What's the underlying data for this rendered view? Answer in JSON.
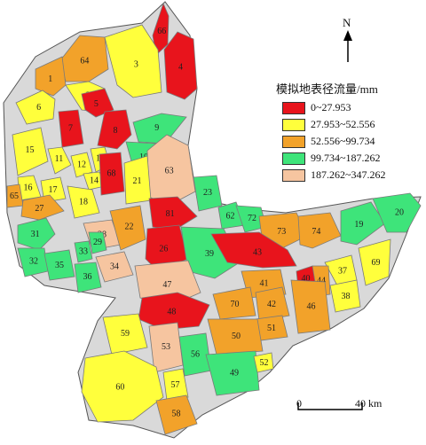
{
  "legend": {
    "title": "模拟地表径流量/mm",
    "classes": [
      {
        "label": "0~27.953",
        "color": "#e8141c"
      },
      {
        "label": "27.953~52.556",
        "color": "#ffff3c"
      },
      {
        "label": "52.556~99.734",
        "color": "#f2a22a"
      },
      {
        "label": "99.734~187.262",
        "color": "#3ee47a"
      },
      {
        "label": "187.262~347.262",
        "color": "#f6c5a0"
      }
    ]
  },
  "north_arrow": {
    "label": "N"
  },
  "scale_bar": {
    "start_label": "0",
    "end_label": "40 km"
  },
  "regions": [
    {
      "id": "66",
      "class": 0
    },
    {
      "id": "4",
      "class": 0
    },
    {
      "id": "64",
      "class": 2
    },
    {
      "id": "3",
      "class": 1
    },
    {
      "id": "1",
      "class": 2
    },
    {
      "id": "2",
      "class": 1
    },
    {
      "id": "6",
      "class": 1
    },
    {
      "id": "5",
      "class": 0
    },
    {
      "id": "7",
      "class": 0
    },
    {
      "id": "8",
      "class": 0
    },
    {
      "id": "9",
      "class": 3
    },
    {
      "id": "10",
      "class": 3
    },
    {
      "id": "15",
      "class": 1
    },
    {
      "id": "11",
      "class": 1
    },
    {
      "id": "12",
      "class": 1
    },
    {
      "id": "13",
      "class": 1
    },
    {
      "id": "14",
      "class": 1
    },
    {
      "id": "68",
      "class": 0
    },
    {
      "id": "63",
      "class": 4
    },
    {
      "id": "21",
      "class": 1
    },
    {
      "id": "16",
      "class": 1
    },
    {
      "id": "17",
      "class": 1
    },
    {
      "id": "18",
      "class": 1
    },
    {
      "id": "65",
      "class": 2
    },
    {
      "id": "27",
      "class": 2
    },
    {
      "id": "23",
      "class": 3
    },
    {
      "id": "81",
      "class": 0
    },
    {
      "id": "62",
      "class": 3
    },
    {
      "id": "72",
      "class": 3
    },
    {
      "id": "73",
      "class": 2
    },
    {
      "id": "74",
      "class": 2
    },
    {
      "id": "19",
      "class": 3
    },
    {
      "id": "20",
      "class": 3
    },
    {
      "id": "31",
      "class": 3
    },
    {
      "id": "28",
      "class": 4
    },
    {
      "id": "22",
      "class": 2
    },
    {
      "id": "26",
      "class": 0
    },
    {
      "id": "39",
      "class": 3
    },
    {
      "id": "43",
      "class": 0
    },
    {
      "id": "69",
      "class": 1
    },
    {
      "id": "37",
      "class": 1
    },
    {
      "id": "32",
      "class": 3
    },
    {
      "id": "35",
      "class": 3
    },
    {
      "id": "33",
      "class": 3
    },
    {
      "id": "29",
      "class": 3
    },
    {
      "id": "34",
      "class": 4
    },
    {
      "id": "36",
      "class": 3
    },
    {
      "id": "47",
      "class": 4
    },
    {
      "id": "41",
      "class": 2
    },
    {
      "id": "44",
      "class": 2
    },
    {
      "id": "38",
      "class": 1
    },
    {
      "id": "40",
      "class": 0
    },
    {
      "id": "70",
      "class": 2
    },
    {
      "id": "42",
      "class": 2
    },
    {
      "id": "46",
      "class": 2
    },
    {
      "id": "48",
      "class": 0
    },
    {
      "id": "51",
      "class": 2
    },
    {
      "id": "50",
      "class": 2
    },
    {
      "id": "59",
      "class": 1
    },
    {
      "id": "53",
      "class": 4
    },
    {
      "id": "56",
      "class": 3
    },
    {
      "id": "49",
      "class": 3
    },
    {
      "id": "52",
      "class": 1
    },
    {
      "id": "60",
      "class": 1
    },
    {
      "id": "57",
      "class": 1
    },
    {
      "id": "58",
      "class": 2
    }
  ]
}
